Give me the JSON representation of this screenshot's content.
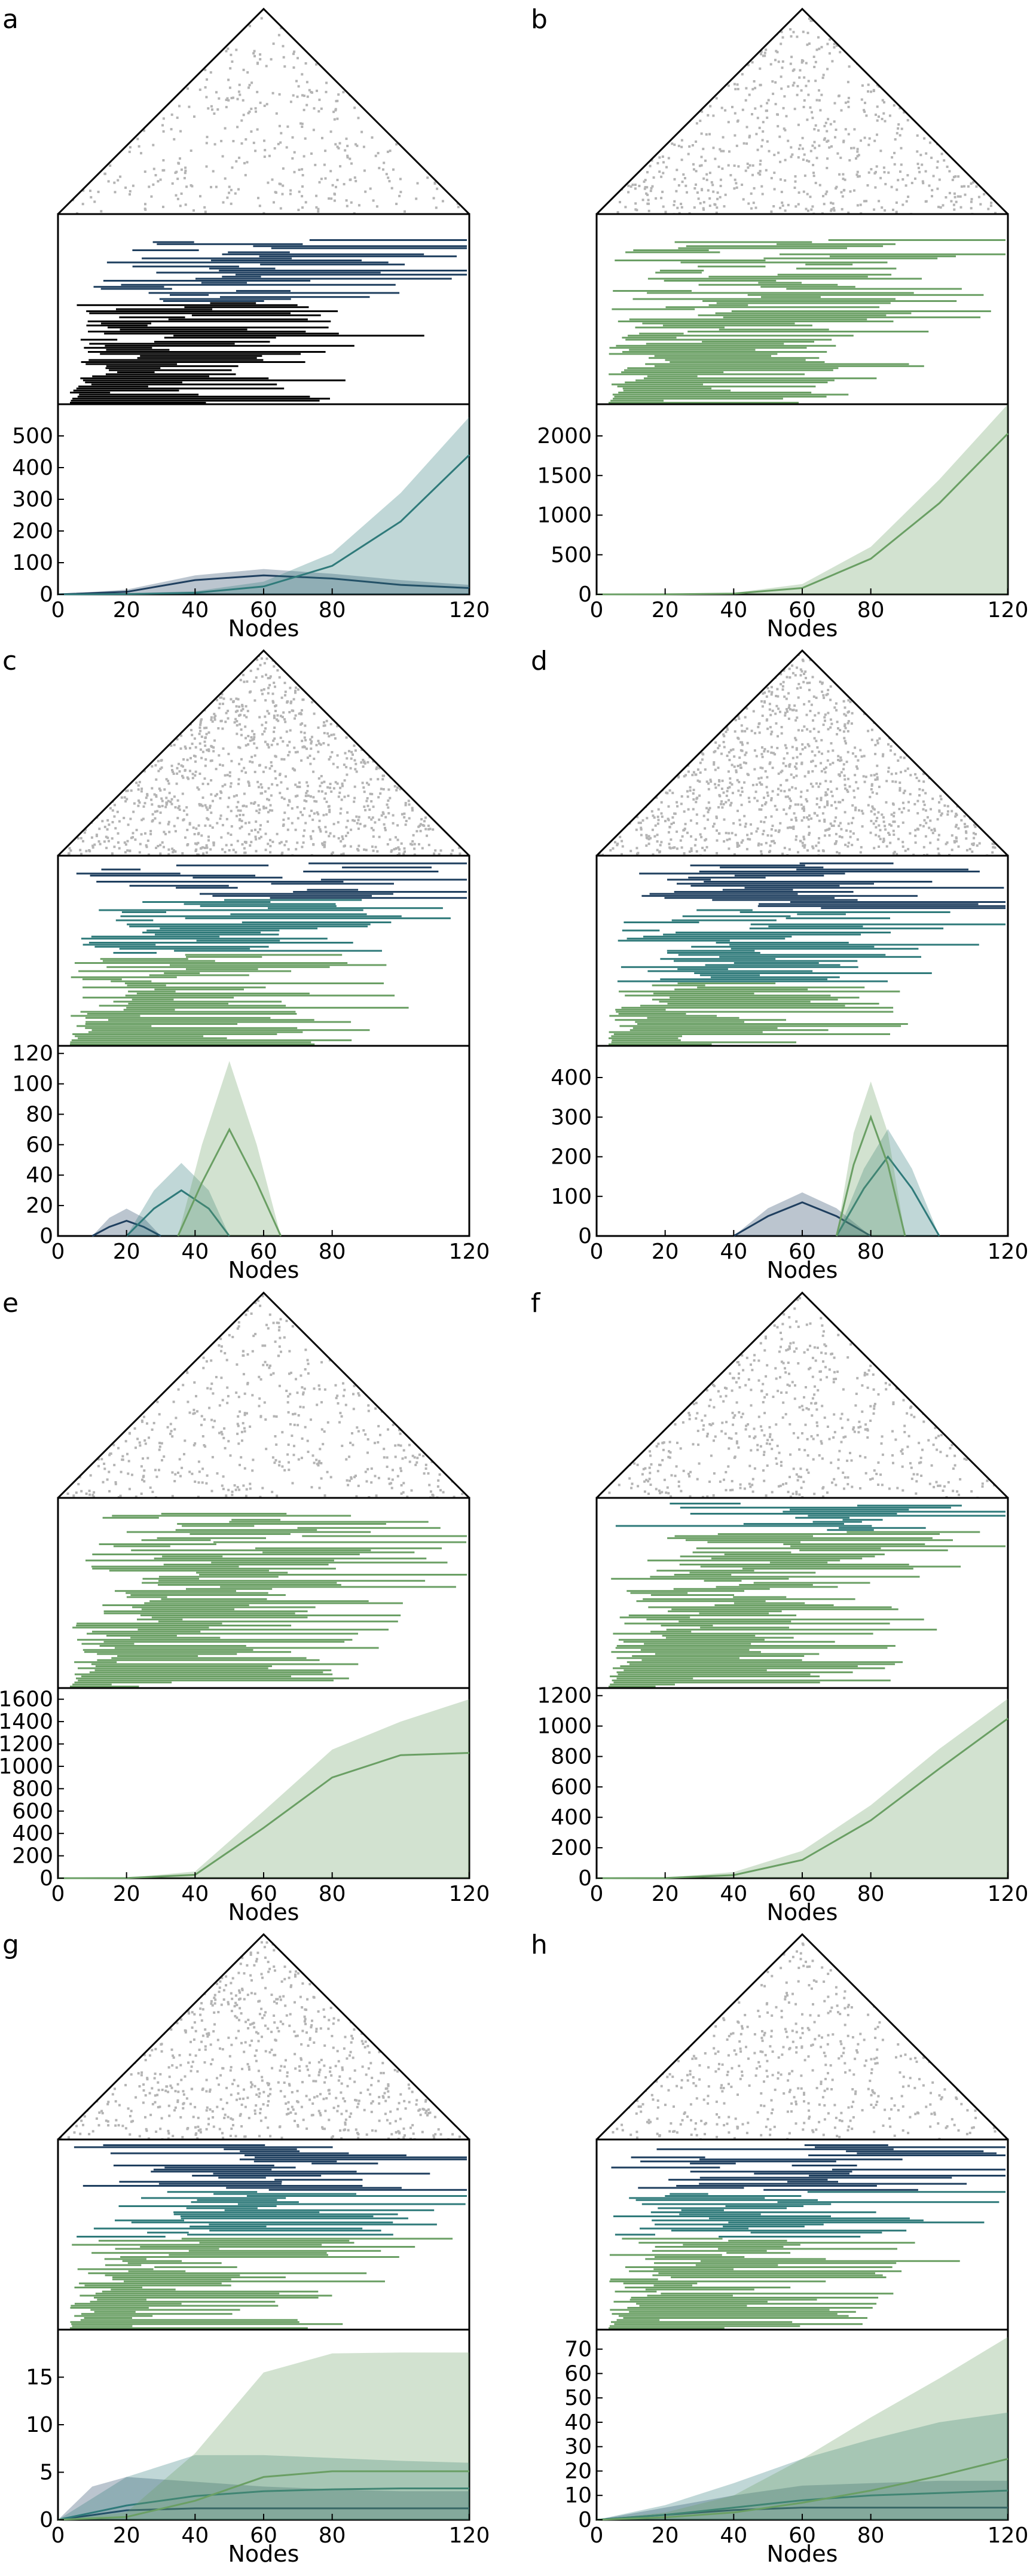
{
  "figure": {
    "x_axis_label": "Nodes",
    "x_ticks": [
      0,
      20,
      40,
      60,
      80,
      120
    ],
    "colors": {
      "matrix_dots": "#b4b4b4",
      "dark": "#1f3f5f",
      "mid": "#2f7a7a",
      "green": "#6a9f64",
      "outline": "#000000"
    }
  },
  "chart_data": [
    {
      "panel": "a",
      "type": "area",
      "xlim": [
        0,
        120
      ],
      "ylim": [
        0,
        600
      ],
      "y_ticks": [
        0,
        100,
        200,
        300,
        400,
        500
      ],
      "matrix_density": 0.15,
      "bars": {
        "teal": 0.55,
        "dark": 0.35
      },
      "series": [
        {
          "color": "dark",
          "x": [
            0,
            20,
            40,
            60,
            80,
            100,
            120
          ],
          "values": [
            0,
            8,
            45,
            60,
            50,
            30,
            20
          ],
          "band": [
            0,
            15,
            60,
            80,
            65,
            45,
            30
          ]
        },
        {
          "color": "mid",
          "x": [
            0,
            20,
            40,
            60,
            80,
            100,
            120
          ],
          "values": [
            0,
            1,
            5,
            25,
            90,
            230,
            440
          ],
          "band": [
            0,
            3,
            10,
            40,
            130,
            320,
            560
          ]
        }
      ]
    },
    {
      "panel": "b",
      "type": "area",
      "xlim": [
        0,
        120
      ],
      "ylim": [
        0,
        2400
      ],
      "y_ticks": [
        0,
        500,
        1000,
        1500,
        2000
      ],
      "matrix_density": 0.35,
      "bars": {
        "green": 0.9
      },
      "series": [
        {
          "color": "green",
          "x": [
            0,
            20,
            40,
            60,
            80,
            100,
            120
          ],
          "values": [
            0,
            1,
            10,
            80,
            450,
            1150,
            2030
          ],
          "band": [
            0,
            3,
            20,
            130,
            600,
            1450,
            2400
          ]
        }
      ]
    },
    {
      "panel": "c",
      "type": "area",
      "xlim": [
        0,
        120
      ],
      "ylim": [
        0,
        125
      ],
      "y_ticks": [
        0,
        20,
        40,
        60,
        80,
        100,
        120
      ],
      "matrix_density": 0.75,
      "bars": {
        "green": 0.5,
        "mid": 0.3,
        "dark": 0.2
      },
      "series": [
        {
          "color": "dark",
          "x": [
            10,
            15,
            20,
            25,
            30
          ],
          "values": [
            0,
            6,
            10,
            6,
            0
          ],
          "band": [
            0,
            12,
            18,
            12,
            0
          ]
        },
        {
          "color": "mid",
          "x": [
            20,
            28,
            36,
            44,
            50
          ],
          "values": [
            0,
            18,
            30,
            18,
            0
          ],
          "band": [
            0,
            30,
            48,
            30,
            0
          ]
        },
        {
          "color": "green",
          "x": [
            35,
            42,
            50,
            58,
            65
          ],
          "values": [
            0,
            35,
            70,
            35,
            0
          ],
          "band": [
            0,
            60,
            115,
            60,
            0
          ]
        }
      ]
    },
    {
      "panel": "d",
      "type": "area",
      "xlim": [
        0,
        120
      ],
      "ylim": [
        0,
        480
      ],
      "y_ticks": [
        0,
        100,
        200,
        300,
        400
      ],
      "matrix_density": 0.7,
      "bars": {
        "green": 0.35,
        "mid": 0.4,
        "dark": 0.25
      },
      "series": [
        {
          "color": "dark",
          "x": [
            40,
            50,
            60,
            70,
            80
          ],
          "values": [
            0,
            50,
            85,
            50,
            0
          ],
          "band": [
            0,
            70,
            110,
            70,
            0
          ]
        },
        {
          "color": "mid",
          "x": [
            70,
            78,
            85,
            92,
            100
          ],
          "values": [
            0,
            120,
            200,
            120,
            0
          ],
          "band": [
            0,
            170,
            270,
            170,
            0
          ]
        },
        {
          "color": "green",
          "x": [
            70,
            75,
            80,
            85,
            90
          ],
          "values": [
            0,
            180,
            300,
            180,
            0
          ],
          "band": [
            0,
            260,
            390,
            260,
            0
          ]
        }
      ]
    },
    {
      "panel": "e",
      "type": "area",
      "xlim": [
        0,
        120
      ],
      "ylim": [
        0,
        1700
      ],
      "y_ticks": [
        0,
        200,
        400,
        600,
        800,
        1000,
        1200,
        1400,
        1600
      ],
      "matrix_density": 0.25,
      "bars": {
        "green": 0.95
      },
      "series": [
        {
          "color": "green",
          "x": [
            0,
            20,
            40,
            60,
            80,
            100,
            120
          ],
          "values": [
            0,
            1,
            30,
            450,
            900,
            1100,
            1120
          ],
          "band": [
            0,
            3,
            60,
            600,
            1150,
            1400,
            1600
          ]
        }
      ]
    },
    {
      "panel": "f",
      "type": "area",
      "xlim": [
        0,
        120
      ],
      "ylim": [
        0,
        1250
      ],
      "y_ticks": [
        0,
        200,
        400,
        600,
        800,
        1000,
        1200
      ],
      "matrix_density": 0.3,
      "bars": {
        "green": 0.85,
        "mid": 0.15
      },
      "series": [
        {
          "color": "green",
          "x": [
            0,
            20,
            40,
            60,
            80,
            100,
            120
          ],
          "values": [
            0,
            1,
            20,
            120,
            380,
            720,
            1050
          ],
          "band": [
            0,
            3,
            40,
            180,
            480,
            850,
            1180
          ]
        }
      ]
    },
    {
      "panel": "g",
      "type": "area",
      "xlim": [
        0,
        120
      ],
      "ylim": [
        0,
        20
      ],
      "y_ticks": [
        0,
        5,
        10,
        15
      ],
      "matrix_density": 0.45,
      "bars": {
        "green": 0.5,
        "mid": 0.25,
        "dark": 0.25
      },
      "series": [
        {
          "color": "dark",
          "x": [
            0,
            10,
            20,
            40,
            60,
            80,
            100,
            120
          ],
          "values": [
            0,
            0.5,
            1.0,
            1.2,
            1.2,
            1.2,
            1.2,
            1.2
          ],
          "band": [
            0,
            3.5,
            4.5,
            4.0,
            3.5,
            3.2,
            3.0,
            3.0
          ]
        },
        {
          "color": "mid",
          "x": [
            0,
            20,
            40,
            60,
            80,
            100,
            120
          ],
          "values": [
            0,
            1.5,
            2.5,
            3.0,
            3.2,
            3.3,
            3.3
          ],
          "band": [
            0,
            4.5,
            6.8,
            6.8,
            6.5,
            6.2,
            6.0
          ]
        },
        {
          "color": "green",
          "x": [
            0,
            20,
            40,
            60,
            80,
            100,
            120
          ],
          "values": [
            0,
            0.3,
            2.0,
            4.5,
            5.1,
            5.1,
            5.1
          ],
          "band": [
            0,
            0.8,
            7.0,
            15.5,
            17.5,
            17.6,
            17.6
          ]
        }
      ]
    },
    {
      "panel": "h",
      "type": "area",
      "xlim": [
        0,
        120
      ],
      "ylim": [
        0,
        78
      ],
      "y_ticks": [
        0,
        10,
        20,
        30,
        40,
        50,
        60,
        70
      ],
      "matrix_density": 0.25,
      "bars": {
        "green": 0.5,
        "mid": 0.25,
        "dark": 0.25
      },
      "series": [
        {
          "color": "dark",
          "x": [
            0,
            20,
            40,
            60,
            80,
            100,
            120
          ],
          "values": [
            0,
            2,
            4,
            5,
            5,
            5,
            5
          ],
          "band": [
            0,
            5,
            10,
            14,
            15,
            16,
            16
          ]
        },
        {
          "color": "mid",
          "x": [
            0,
            20,
            40,
            60,
            80,
            100,
            120
          ],
          "values": [
            0,
            2,
            5,
            8,
            10,
            11,
            12
          ],
          "band": [
            0,
            6,
            15,
            25,
            33,
            40,
            44
          ]
        },
        {
          "color": "green",
          "x": [
            0,
            20,
            40,
            60,
            80,
            100,
            120
          ],
          "values": [
            0,
            1,
            3,
            7,
            12,
            18,
            25
          ],
          "band": [
            0,
            3,
            10,
            25,
            42,
            58,
            75
          ]
        }
      ]
    }
  ]
}
